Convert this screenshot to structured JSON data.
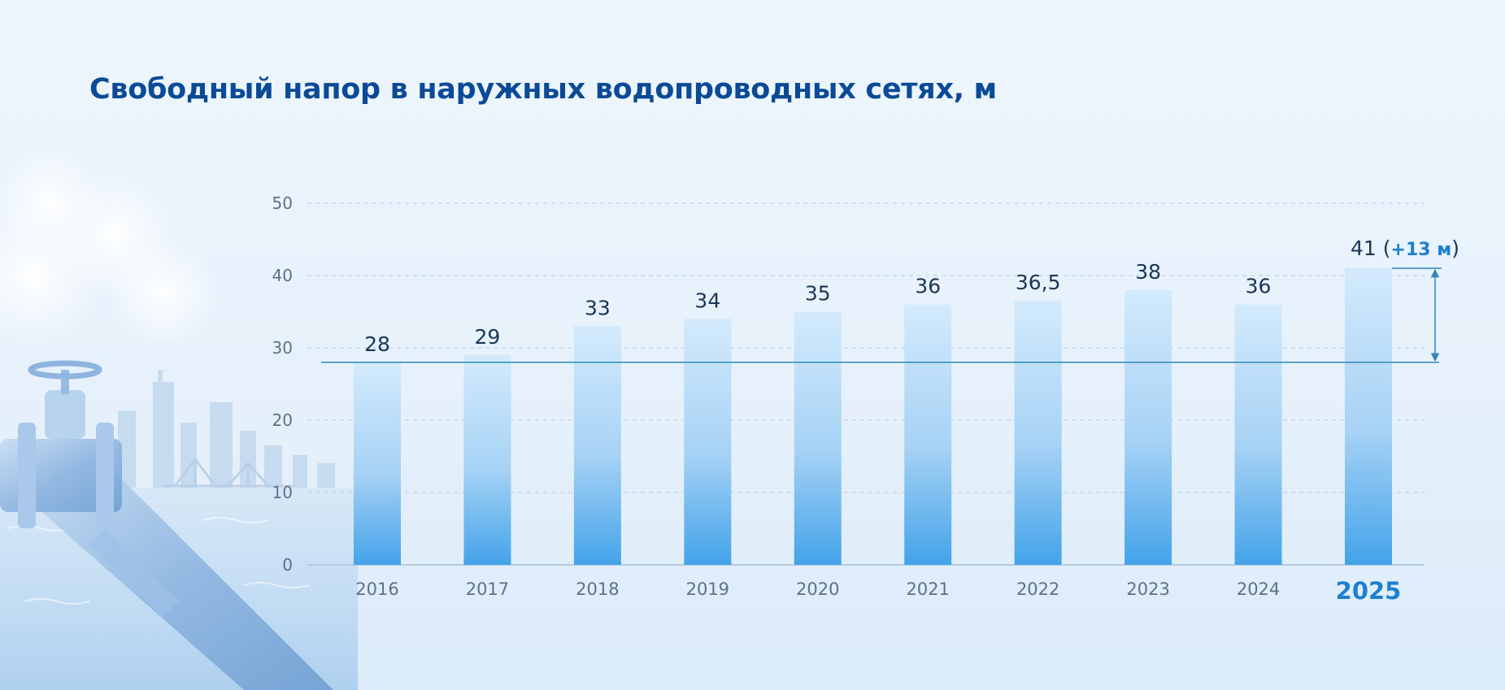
{
  "title": "Свободный напор в наружных водопроводных сетях, м",
  "chart_data": {
    "type": "bar",
    "title": "Свободный напор в наружных водопроводных сетях, м",
    "xlabel": "",
    "ylabel": "",
    "ylim": [
      0,
      50
    ],
    "yticks": [
      0,
      10,
      20,
      30,
      40,
      50
    ],
    "grid": true,
    "categories": [
      "2016",
      "2017",
      "2018",
      "2019",
      "2020",
      "2021",
      "2022",
      "2023",
      "2024",
      "2025"
    ],
    "values": [
      28,
      29,
      33,
      34,
      35,
      36,
      36.5,
      38,
      36,
      41
    ],
    "value_labels": [
      "28",
      "29",
      "33",
      "34",
      "35",
      "36",
      "36,5",
      "38",
      "36",
      "41"
    ],
    "highlight_category": "2025",
    "reference_line": 28,
    "annotation": {
      "category": "2025",
      "open": "(",
      "delta": "+13 м",
      "close": ")"
    },
    "colors": {
      "bar_top": "#d2e9fb",
      "bar_bottom": "#46a6ea",
      "reference_line": "#2f88b8",
      "highlight": "#1f7fd0",
      "label": "#1b3556",
      "tick": "#5e7186"
    }
  }
}
